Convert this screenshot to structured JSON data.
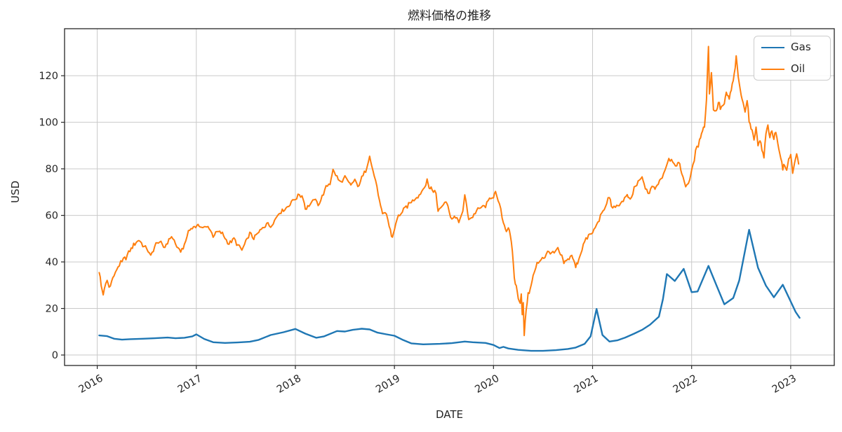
{
  "chart_data": {
    "type": "line",
    "title": "燃料価格の推移",
    "xlabel": "DATE",
    "ylabel": "USD",
    "xlim": [
      2015.67,
      2023.44
    ],
    "ylim": [
      -4.5,
      140.2
    ],
    "xticks": [
      2016,
      2017,
      2018,
      2019,
      2020,
      2021,
      2022,
      2023
    ],
    "yticks": [
      0,
      20,
      40,
      60,
      80,
      100,
      120
    ],
    "grid": true,
    "grid_color": "#c9c9c9",
    "spine_color": "#262626",
    "legend_position": "upper right",
    "x_tick_rotation_deg": 30,
    "series": [
      {
        "name": "Gas",
        "color": "#1f77b4",
        "line_width": 2.4,
        "noise_amplitude": 0,
        "points": [
          [
            2016.02,
            8.4
          ],
          [
            2016.1,
            8.1
          ],
          [
            2016.17,
            7.0
          ],
          [
            2016.25,
            6.6
          ],
          [
            2016.33,
            6.8
          ],
          [
            2016.46,
            7.0
          ],
          [
            2016.58,
            7.2
          ],
          [
            2016.71,
            7.5
          ],
          [
            2016.79,
            7.2
          ],
          [
            2016.88,
            7.4
          ],
          [
            2016.96,
            8.0
          ],
          [
            2017.0,
            8.9
          ],
          [
            2017.08,
            6.9
          ],
          [
            2017.17,
            5.5
          ],
          [
            2017.29,
            5.2
          ],
          [
            2017.42,
            5.4
          ],
          [
            2017.54,
            5.7
          ],
          [
            2017.63,
            6.5
          ],
          [
            2017.75,
            8.6
          ],
          [
            2017.88,
            9.8
          ],
          [
            2018.0,
            11.2
          ],
          [
            2018.1,
            9.2
          ],
          [
            2018.21,
            7.4
          ],
          [
            2018.29,
            8.0
          ],
          [
            2018.42,
            10.3
          ],
          [
            2018.5,
            10.1
          ],
          [
            2018.58,
            10.8
          ],
          [
            2018.67,
            11.3
          ],
          [
            2018.75,
            11.0
          ],
          [
            2018.83,
            9.6
          ],
          [
            2018.92,
            8.9
          ],
          [
            2019.0,
            8.3
          ],
          [
            2019.08,
            6.6
          ],
          [
            2019.17,
            5.0
          ],
          [
            2019.29,
            4.6
          ],
          [
            2019.46,
            4.8
          ],
          [
            2019.58,
            5.1
          ],
          [
            2019.71,
            5.8
          ],
          [
            2019.79,
            5.5
          ],
          [
            2019.92,
            5.2
          ],
          [
            2020.0,
            4.3
          ],
          [
            2020.06,
            3.0
          ],
          [
            2020.1,
            3.5
          ],
          [
            2020.15,
            2.8
          ],
          [
            2020.25,
            2.2
          ],
          [
            2020.38,
            1.8
          ],
          [
            2020.5,
            1.8
          ],
          [
            2020.63,
            2.1
          ],
          [
            2020.75,
            2.6
          ],
          [
            2020.83,
            3.2
          ],
          [
            2020.92,
            4.8
          ],
          [
            2020.98,
            8.0
          ],
          [
            2021.04,
            19.8
          ],
          [
            2021.1,
            8.6
          ],
          [
            2021.17,
            5.8
          ],
          [
            2021.25,
            6.3
          ],
          [
            2021.33,
            7.5
          ],
          [
            2021.42,
            9.2
          ],
          [
            2021.5,
            10.8
          ],
          [
            2021.58,
            13.0
          ],
          [
            2021.67,
            16.5
          ],
          [
            2021.71,
            24.0
          ],
          [
            2021.75,
            34.8
          ],
          [
            2021.83,
            31.8
          ],
          [
            2021.92,
            37.0
          ],
          [
            2022.0,
            27.0
          ],
          [
            2022.06,
            27.3
          ],
          [
            2022.17,
            38.3
          ],
          [
            2022.25,
            30.0
          ],
          [
            2022.33,
            21.8
          ],
          [
            2022.42,
            24.5
          ],
          [
            2022.48,
            32.0
          ],
          [
            2022.58,
            53.8
          ],
          [
            2022.67,
            37.5
          ],
          [
            2022.75,
            29.8
          ],
          [
            2022.83,
            24.8
          ],
          [
            2022.92,
            30.2
          ],
          [
            2023.0,
            23.0
          ],
          [
            2023.05,
            18.5
          ],
          [
            2023.09,
            16.0
          ]
        ]
      },
      {
        "name": "Oil",
        "color": "#ff7f0e",
        "line_width": 2.0,
        "noise_amplitude": 1.2,
        "points": [
          [
            2016.02,
            36
          ],
          [
            2016.04,
            30
          ],
          [
            2016.06,
            26.5
          ],
          [
            2016.1,
            32
          ],
          [
            2016.12,
            29
          ],
          [
            2016.17,
            34
          ],
          [
            2016.21,
            38
          ],
          [
            2016.25,
            40
          ],
          [
            2016.29,
            42
          ],
          [
            2016.33,
            45
          ],
          [
            2016.38,
            48
          ],
          [
            2016.42,
            49.5
          ],
          [
            2016.46,
            47
          ],
          [
            2016.5,
            46
          ],
          [
            2016.54,
            42.5
          ],
          [
            2016.58,
            47
          ],
          [
            2016.63,
            49
          ],
          [
            2016.67,
            46
          ],
          [
            2016.71,
            48.5
          ],
          [
            2016.75,
            51
          ],
          [
            2016.79,
            48
          ],
          [
            2016.83,
            44.5
          ],
          [
            2016.88,
            47
          ],
          [
            2016.92,
            53
          ],
          [
            2016.96,
            55
          ],
          [
            2017.04,
            55.5
          ],
          [
            2017.08,
            54.5
          ],
          [
            2017.13,
            55
          ],
          [
            2017.17,
            51.5
          ],
          [
            2017.21,
            53
          ],
          [
            2017.25,
            52.5
          ],
          [
            2017.29,
            50.5
          ],
          [
            2017.33,
            48
          ],
          [
            2017.38,
            50
          ],
          [
            2017.42,
            47
          ],
          [
            2017.46,
            45
          ],
          [
            2017.5,
            48.5
          ],
          [
            2017.54,
            52
          ],
          [
            2017.58,
            50.5
          ],
          [
            2017.63,
            52.5
          ],
          [
            2017.67,
            55
          ],
          [
            2017.71,
            56.5
          ],
          [
            2017.75,
            55.5
          ],
          [
            2017.79,
            57.5
          ],
          [
            2017.83,
            61
          ],
          [
            2017.88,
            62.5
          ],
          [
            2017.92,
            63.5
          ],
          [
            2017.96,
            66
          ],
          [
            2018.0,
            67
          ],
          [
            2018.04,
            69
          ],
          [
            2018.08,
            67.5
          ],
          [
            2018.1,
            63
          ],
          [
            2018.15,
            64.5
          ],
          [
            2018.19,
            67
          ],
          [
            2018.23,
            64.5
          ],
          [
            2018.27,
            68
          ],
          [
            2018.31,
            72
          ],
          [
            2018.35,
            74
          ],
          [
            2018.38,
            79.5
          ],
          [
            2018.42,
            76.5
          ],
          [
            2018.46,
            74
          ],
          [
            2018.5,
            76.5
          ],
          [
            2018.54,
            74
          ],
          [
            2018.56,
            72.5
          ],
          [
            2018.6,
            75.5
          ],
          [
            2018.63,
            72
          ],
          [
            2018.67,
            76
          ],
          [
            2018.71,
            79
          ],
          [
            2018.75,
            86
          ],
          [
            2018.77,
            81
          ],
          [
            2018.81,
            75
          ],
          [
            2018.85,
            66
          ],
          [
            2018.88,
            60
          ],
          [
            2018.92,
            61
          ],
          [
            2018.96,
            53
          ],
          [
            2018.98,
            50.5
          ],
          [
            2019.0,
            54
          ],
          [
            2019.04,
            60
          ],
          [
            2019.08,
            61.5
          ],
          [
            2019.13,
            64
          ],
          [
            2019.17,
            66
          ],
          [
            2019.21,
            67.5
          ],
          [
            2019.25,
            68.5
          ],
          [
            2019.29,
            71.5
          ],
          [
            2019.33,
            74.5
          ],
          [
            2019.35,
            72
          ],
          [
            2019.38,
            71.5
          ],
          [
            2019.42,
            69.5
          ],
          [
            2019.44,
            62
          ],
          [
            2019.48,
            64.5
          ],
          [
            2019.52,
            66.5
          ],
          [
            2019.54,
            63.5
          ],
          [
            2019.58,
            58.5
          ],
          [
            2019.63,
            59.5
          ],
          [
            2019.65,
            56.5
          ],
          [
            2019.69,
            62
          ],
          [
            2019.71,
            68.5
          ],
          [
            2019.73,
            64
          ],
          [
            2019.75,
            58.5
          ],
          [
            2019.79,
            59.5
          ],
          [
            2019.83,
            62
          ],
          [
            2019.88,
            63.5
          ],
          [
            2019.92,
            64
          ],
          [
            2019.96,
            67
          ],
          [
            2020.0,
            68.5
          ],
          [
            2020.02,
            69.5
          ],
          [
            2020.06,
            64.5
          ],
          [
            2020.1,
            57
          ],
          [
            2020.13,
            53.5
          ],
          [
            2020.15,
            55
          ],
          [
            2020.17,
            51
          ],
          [
            2020.19,
            45
          ],
          [
            2020.21,
            33
          ],
          [
            2020.23,
            29
          ],
          [
            2020.25,
            25
          ],
          [
            2020.27,
            22
          ],
          [
            2020.28,
            27
          ],
          [
            2020.29,
            17
          ],
          [
            2020.3,
            22
          ],
          [
            2020.31,
            8.5
          ],
          [
            2020.33,
            20
          ],
          [
            2020.35,
            26
          ],
          [
            2020.38,
            30
          ],
          [
            2020.4,
            34
          ],
          [
            2020.44,
            39
          ],
          [
            2020.48,
            41.5
          ],
          [
            2020.52,
            42.5
          ],
          [
            2020.56,
            44.5
          ],
          [
            2020.6,
            43.5
          ],
          [
            2020.65,
            45.5
          ],
          [
            2020.69,
            42
          ],
          [
            2020.71,
            39.5
          ],
          [
            2020.75,
            41
          ],
          [
            2020.79,
            43
          ],
          [
            2020.81,
            40.5
          ],
          [
            2020.83,
            37.5
          ],
          [
            2020.85,
            40
          ],
          [
            2020.88,
            44
          ],
          [
            2020.92,
            48.5
          ],
          [
            2020.96,
            51
          ],
          [
            2021.0,
            52.5
          ],
          [
            2021.04,
            56
          ],
          [
            2021.08,
            59.5
          ],
          [
            2021.13,
            63.5
          ],
          [
            2021.17,
            68.5
          ],
          [
            2021.19,
            64
          ],
          [
            2021.23,
            63
          ],
          [
            2021.27,
            65
          ],
          [
            2021.31,
            66.5
          ],
          [
            2021.35,
            68.5
          ],
          [
            2021.38,
            66
          ],
          [
            2021.42,
            71.5
          ],
          [
            2021.46,
            74
          ],
          [
            2021.5,
            76
          ],
          [
            2021.52,
            73.5
          ],
          [
            2021.56,
            69
          ],
          [
            2021.6,
            72.5
          ],
          [
            2021.63,
            71
          ],
          [
            2021.65,
            73
          ],
          [
            2021.69,
            75.5
          ],
          [
            2021.73,
            79.5
          ],
          [
            2021.77,
            84.5
          ],
          [
            2021.81,
            83.5
          ],
          [
            2021.85,
            81
          ],
          [
            2021.88,
            82.5
          ],
          [
            2021.9,
            78
          ],
          [
            2021.94,
            72.5
          ],
          [
            2021.98,
            75.5
          ],
          [
            2022.0,
            79
          ],
          [
            2022.04,
            87
          ],
          [
            2022.08,
            92
          ],
          [
            2022.1,
            96
          ],
          [
            2022.13,
            98
          ],
          [
            2022.15,
            110
          ],
          [
            2022.17,
            133.5
          ],
          [
            2022.18,
            112
          ],
          [
            2022.2,
            121
          ],
          [
            2022.22,
            106
          ],
          [
            2022.25,
            104.5
          ],
          [
            2022.27,
            109
          ],
          [
            2022.29,
            106
          ],
          [
            2022.33,
            108
          ],
          [
            2022.35,
            112
          ],
          [
            2022.38,
            110
          ],
          [
            2022.4,
            114
          ],
          [
            2022.42,
            118
          ],
          [
            2022.44,
            123
          ],
          [
            2022.45,
            129
          ],
          [
            2022.47,
            119
          ],
          [
            2022.5,
            112
          ],
          [
            2022.52,
            108
          ],
          [
            2022.54,
            105
          ],
          [
            2022.56,
            110
          ],
          [
            2022.58,
            101
          ],
          [
            2022.6,
            97
          ],
          [
            2022.63,
            93.5
          ],
          [
            2022.65,
            97.5
          ],
          [
            2022.67,
            90
          ],
          [
            2022.69,
            93
          ],
          [
            2022.71,
            88
          ],
          [
            2022.73,
            85.5
          ],
          [
            2022.75,
            95
          ],
          [
            2022.77,
            98.5
          ],
          [
            2022.79,
            94
          ],
          [
            2022.81,
            96.5
          ],
          [
            2022.83,
            93
          ],
          [
            2022.85,
            95.5
          ],
          [
            2022.88,
            88
          ],
          [
            2022.9,
            85
          ],
          [
            2022.92,
            80
          ],
          [
            2022.94,
            82
          ],
          [
            2022.96,
            79
          ],
          [
            2022.98,
            84
          ],
          [
            2023.0,
            86
          ],
          [
            2023.02,
            78.5
          ],
          [
            2023.04,
            82
          ],
          [
            2023.06,
            86.5
          ],
          [
            2023.08,
            82.5
          ]
        ]
      }
    ]
  }
}
